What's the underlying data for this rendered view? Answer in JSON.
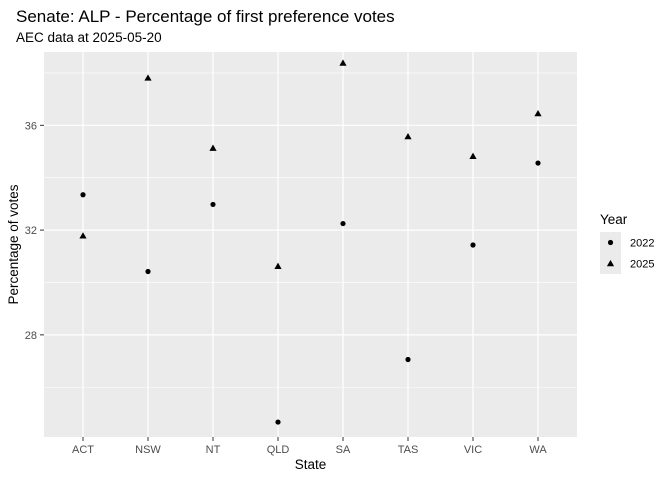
{
  "chart_data": {
    "type": "scatter",
    "title": "Senate: ALP - Percentage of first preference votes",
    "subtitle": "AEC data at 2025-05-20",
    "xlabel": "State",
    "ylabel": "Percentage of votes",
    "categories": [
      "ACT",
      "NSW",
      "NT",
      "QLD",
      "SA",
      "TAS",
      "VIC",
      "WA"
    ],
    "ylim": [
      24.1,
      38.8
    ],
    "yticks": [
      28,
      32,
      36
    ],
    "ytick_labels": [
      "28",
      "32",
      "36"
    ],
    "grid": true,
    "legend": {
      "title": "Year",
      "position": "right"
    },
    "series": [
      {
        "name": "2022",
        "marker": "circle",
        "color": "#000000",
        "values": [
          33.35,
          30.42,
          32.98,
          24.67,
          32.25,
          27.06,
          31.43,
          34.56
        ]
      },
      {
        "name": "2025",
        "marker": "triangle",
        "color": "#000000",
        "values": [
          31.78,
          37.81,
          35.13,
          30.62,
          38.38,
          35.57,
          34.82,
          36.45
        ]
      }
    ],
    "colors": {
      "panel": "#ebebeb",
      "grid": "#ffffff",
      "legend_key": "#ebebeb",
      "tick_text": "#4d4d4d"
    }
  }
}
